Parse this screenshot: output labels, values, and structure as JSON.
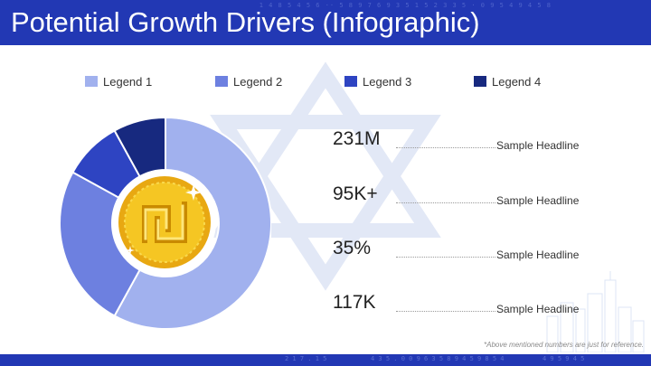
{
  "title": "Potential Growth Drivers (Infographic)",
  "colors": {
    "header": "#2238b4",
    "legend_1": "#a1b1ee",
    "legend_2": "#6d80e0",
    "legend_3": "#2e44c2",
    "legend_4": "#17297f",
    "coin": "#f3c21a"
  },
  "chart_data": {
    "type": "pie",
    "donut": true,
    "categories": [
      "Legend 1",
      "Legend 2",
      "Legend 3",
      "Legend 4"
    ],
    "values": [
      58,
      25,
      9,
      8
    ],
    "legend_position": "top"
  },
  "stats": [
    {
      "value": "231M",
      "label": "Sample Headline"
    },
    {
      "value": "95K+",
      "label": "Sample Headline"
    },
    {
      "value": "35%",
      "label": "Sample Headline"
    },
    {
      "value": "117K",
      "label": "Sample Headline"
    }
  ],
  "note": "*Above mentioned numbers are just for reference.",
  "icons": {
    "center": "shekel-coin-icon",
    "background": "star-of-david-icon",
    "decoration": "city-skyline-icon"
  }
}
